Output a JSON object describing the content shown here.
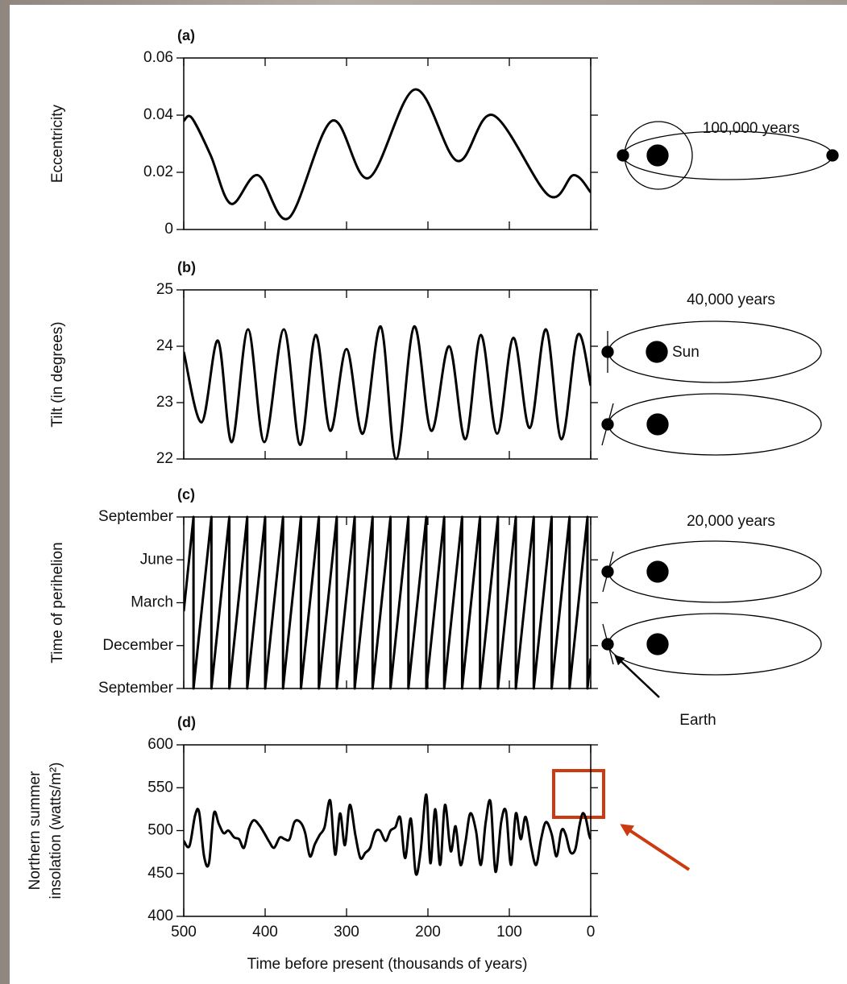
{
  "chart_data": [
    {
      "type": "line",
      "title": "(a)",
      "ylabel": "Eccentricity",
      "color": "#000000",
      "smooth": true,
      "xlim": [
        500,
        0
      ],
      "xticks": [
        500,
        400,
        300,
        200,
        100,
        0
      ],
      "ylim": [
        0,
        0.06
      ],
      "yticks": [
        0,
        0.02,
        0.04,
        0.06
      ],
      "x": [
        500,
        490,
        467,
        442,
        409,
        371,
        318,
        273,
        216,
        164,
        120,
        52,
        21,
        0
      ],
      "values": [
        0.038,
        0.039,
        0.026,
        0.009,
        0.019,
        0.004,
        0.038,
        0.018,
        0.049,
        0.024,
        0.04,
        0.012,
        0.019,
        0.013
      ],
      "annotations": [
        "100,000 years"
      ]
    },
    {
      "type": "line",
      "title": "(b)",
      "ylabel": "Tilt (in degrees)",
      "color": "#000000",
      "smooth": true,
      "xlim": [
        500,
        0
      ],
      "xticks": [
        500,
        400,
        300,
        200,
        100,
        0
      ],
      "ylim": [
        22,
        25
      ],
      "yticks": [
        22,
        23,
        24,
        25
      ],
      "x": [
        500,
        478,
        458,
        441,
        421,
        401,
        377,
        357,
        338,
        320,
        300,
        280,
        258,
        239,
        217,
        196,
        174,
        154,
        135,
        115,
        95,
        75,
        55,
        36,
        16,
        0
      ],
      "values": [
        23.9,
        22.65,
        24.1,
        22.3,
        24.3,
        22.3,
        24.3,
        22.25,
        24.2,
        22.5,
        23.95,
        22.45,
        24.35,
        22.0,
        24.35,
        22.5,
        24.0,
        22.35,
        24.2,
        22.45,
        24.15,
        22.55,
        24.3,
        22.35,
        24.2,
        23.3
      ],
      "annotations": [
        "40,000 years",
        "Sun"
      ]
    },
    {
      "type": "line",
      "title": "(c)",
      "ylabel": "Time of perihelion",
      "color": "#000000",
      "smooth": false,
      "xlim": [
        500,
        0
      ],
      "xticks": [
        500,
        400,
        300,
        200,
        100,
        0
      ],
      "ylim": [
        0,
        4
      ],
      "yticks": [
        {
          "value": 0,
          "label": "September"
        },
        {
          "value": 1,
          "label": "December"
        },
        {
          "value": 2,
          "label": "March"
        },
        {
          "value": 3,
          "label": "June"
        },
        {
          "value": 4,
          "label": "September"
        }
      ],
      "x": [
        500,
        488,
        488,
        466,
        466,
        444,
        444,
        422,
        422,
        400,
        400,
        378,
        378,
        356,
        356,
        334,
        334,
        312,
        312,
        290,
        290,
        268,
        268,
        246,
        246,
        224,
        224,
        202,
        202,
        180,
        180,
        158,
        158,
        136,
        136,
        114,
        114,
        92,
        92,
        70,
        70,
        48,
        48,
        26,
        26,
        4,
        4,
        0
      ],
      "values": [
        1.8,
        4,
        0,
        4,
        0,
        4,
        0,
        4,
        0,
        4,
        0,
        4,
        0,
        4,
        0,
        4,
        0,
        4,
        0,
        4,
        0,
        4,
        0,
        4,
        0,
        4,
        0,
        4,
        0,
        4,
        0,
        4,
        0,
        4,
        0,
        4,
        0,
        4,
        0,
        4,
        0,
        4,
        0,
        4,
        0,
        4,
        0,
        0.7
      ],
      "annotations": [
        "20,000 years",
        "Earth"
      ]
    },
    {
      "type": "line",
      "title": "(d)",
      "ylabel": [
        "Northern summer",
        "insolation (watts/m²)"
      ],
      "xlabel": "Time before present (thousands of years)",
      "color": "#000000",
      "smooth": true,
      "xlim": [
        500,
        0
      ],
      "xticks": [
        500,
        400,
        300,
        200,
        100,
        0
      ],
      "ylim": [
        400,
        600
      ],
      "yticks": [
        400,
        450,
        500,
        550,
        600
      ],
      "x": [
        500,
        493,
        486,
        481,
        475,
        469,
        463,
        457,
        451,
        445,
        438,
        432,
        426,
        420,
        414,
        407,
        401,
        395,
        389,
        382,
        376,
        370,
        364,
        357,
        351,
        345,
        339,
        333,
        327,
        320,
        314,
        308,
        302,
        296,
        289,
        283,
        277,
        271,
        265,
        259,
        252,
        246,
        240,
        234,
        228,
        221,
        215,
        209,
        202,
        197,
        191,
        185,
        179,
        172,
        166,
        160,
        154,
        148,
        141,
        135,
        129,
        123,
        117,
        110,
        104,
        98,
        92,
        86,
        80,
        73,
        67,
        61,
        55,
        48,
        42,
        36,
        31,
        25,
        19,
        14,
        10,
        6,
        2,
        0
      ],
      "values": [
        488,
        482,
        518,
        521,
        470,
        462,
        520,
        508,
        497,
        500,
        492,
        490,
        480,
        502,
        512,
        506,
        497,
        487,
        480,
        492,
        490,
        490,
        510,
        510,
        498,
        470,
        484,
        495,
        504,
        535,
        472,
        520,
        483,
        530,
        494,
        468,
        474,
        480,
        498,
        500,
        488,
        500,
        504,
        515,
        468,
        514,
        450,
        476,
        542,
        462,
        525,
        460,
        530,
        476,
        505,
        460,
        486,
        520,
        500,
        460,
        510,
        533,
        452,
        510,
        522,
        460,
        520,
        490,
        516,
        480,
        460,
        490,
        510,
        496,
        470,
        500,
        496,
        475,
        478,
        505,
        520,
        514,
        495,
        490
      ]
    }
  ]
}
